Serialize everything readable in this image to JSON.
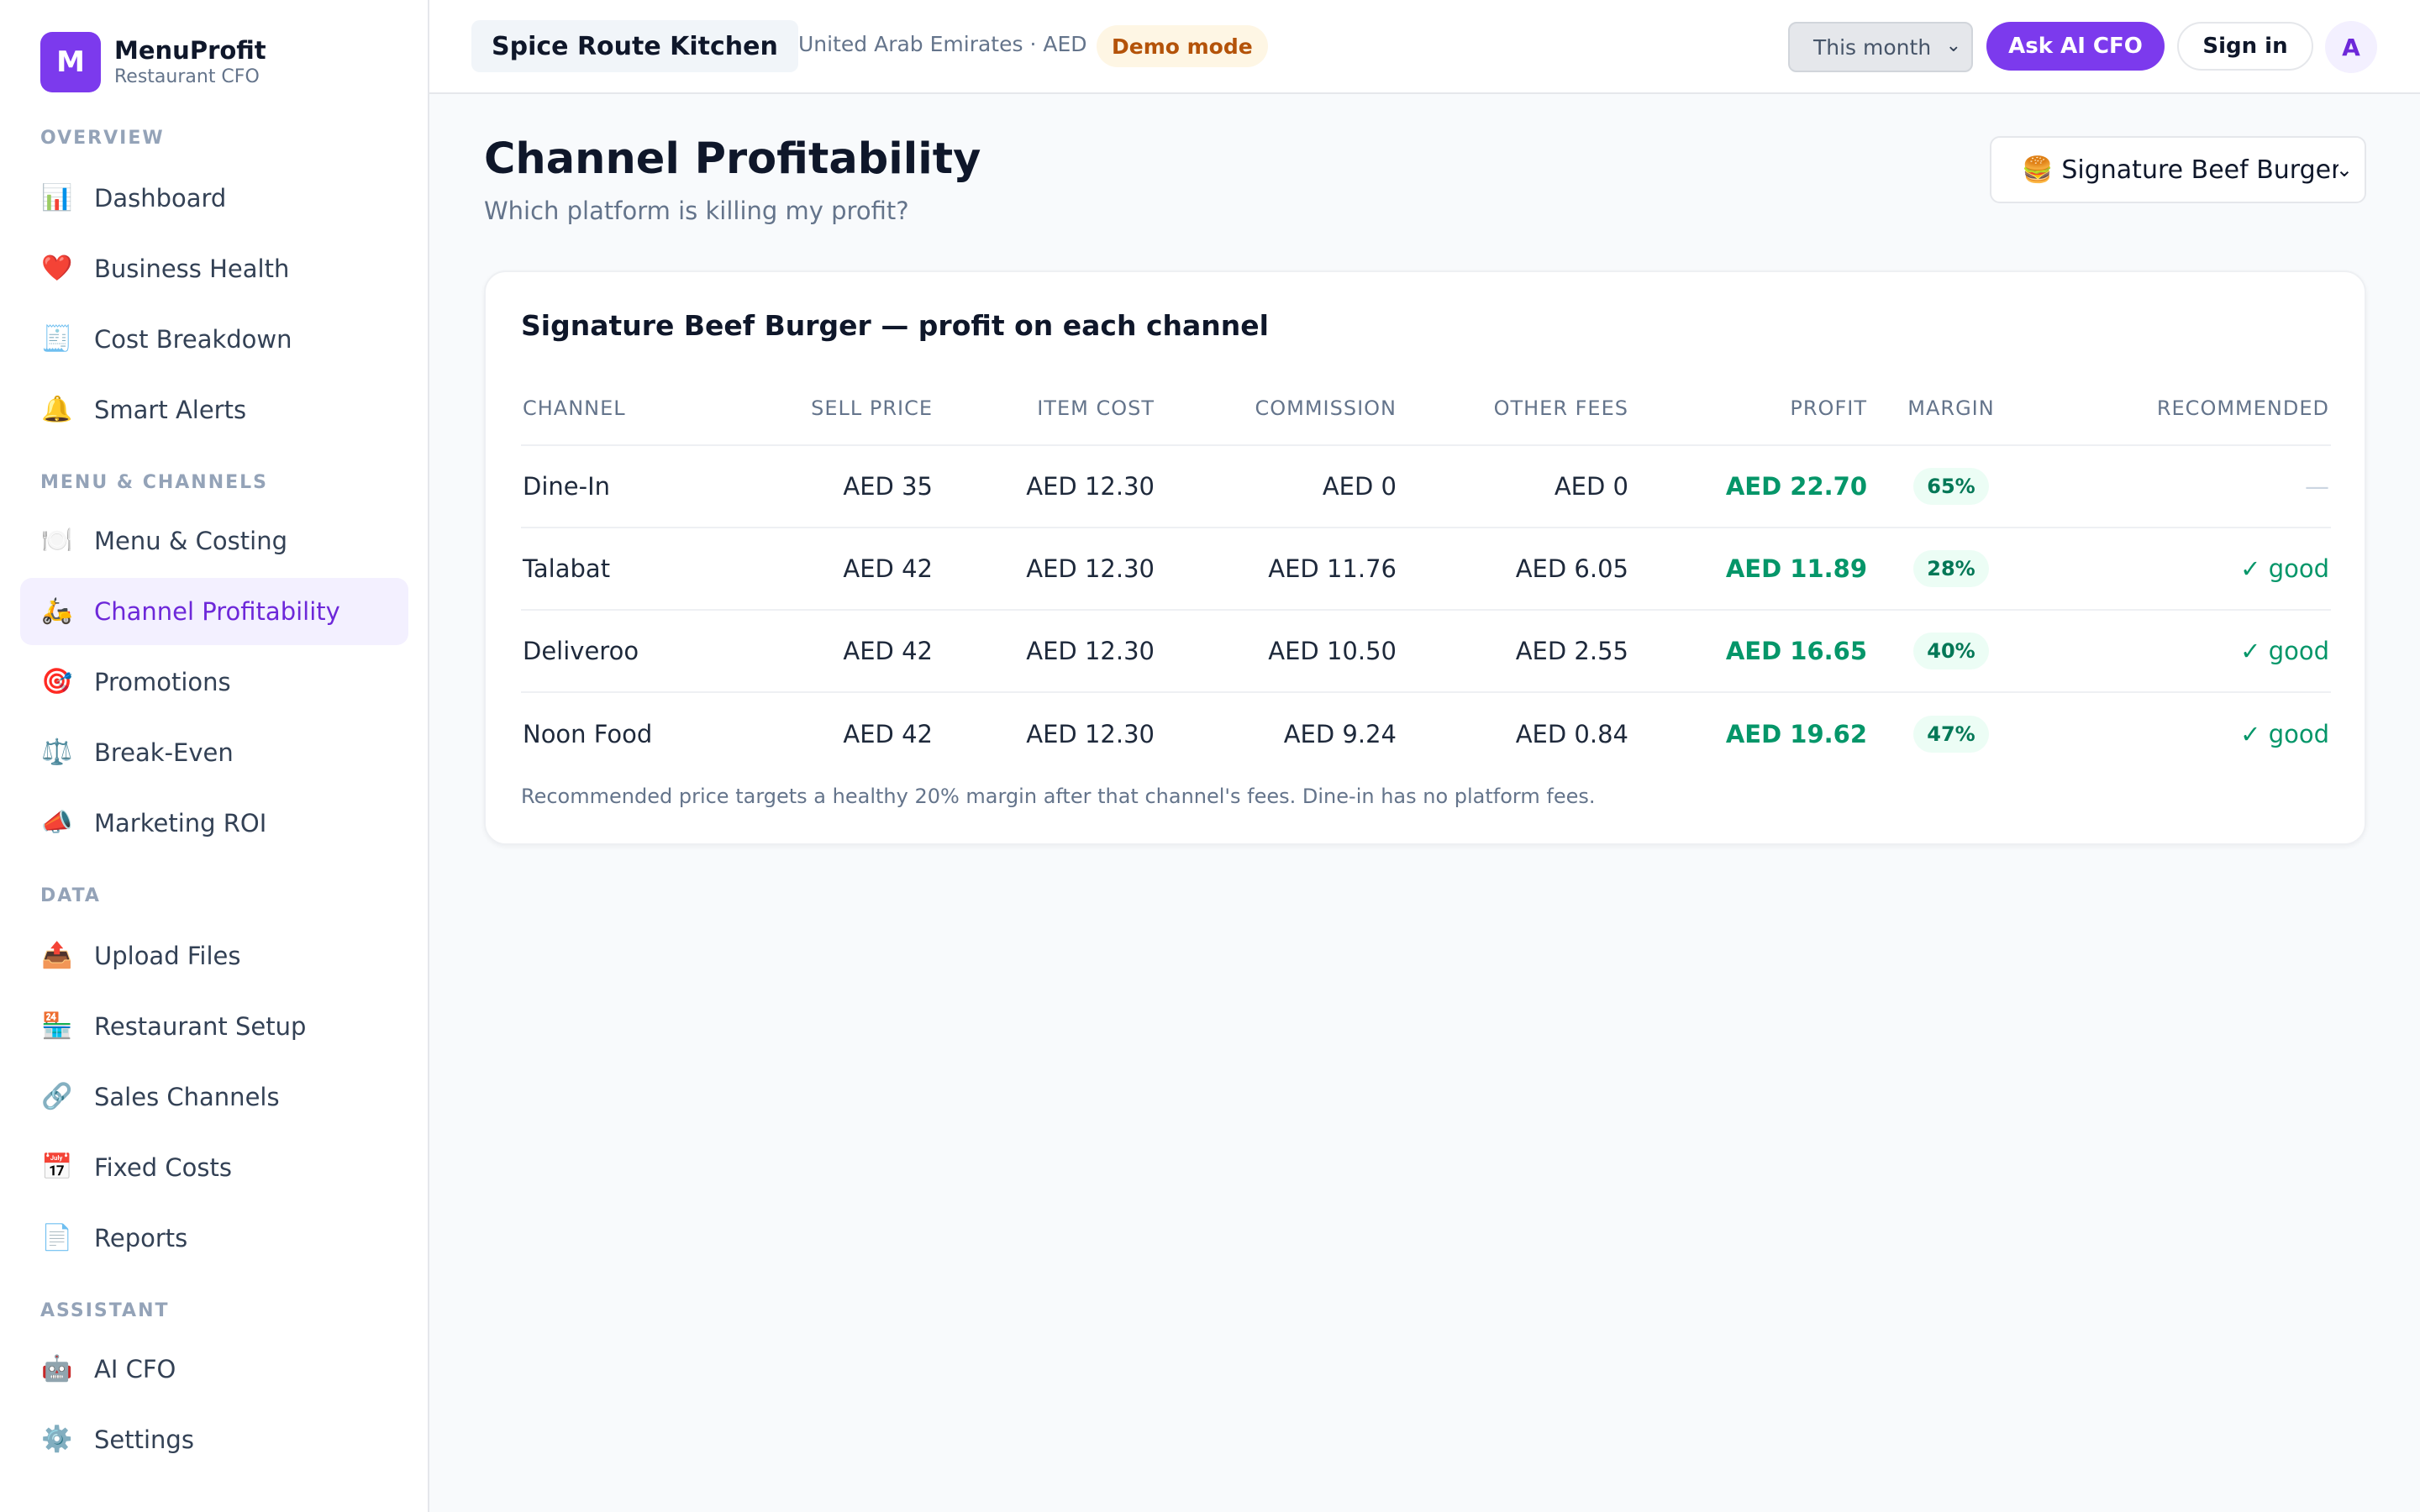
{
  "brand": {
    "logo_letter": "M",
    "name": "MenuProfit",
    "subtitle": "Restaurant CFO"
  },
  "sidebar": {
    "sections": [
      {
        "label": "OVERVIEW",
        "items": [
          {
            "icon": "bar-chart-icon",
            "glyph": "📊",
            "label": "Dashboard"
          },
          {
            "icon": "heart-icon",
            "glyph": "❤️",
            "label": "Business Health"
          },
          {
            "icon": "receipt-icon",
            "glyph": "🧾",
            "label": "Cost Breakdown"
          },
          {
            "icon": "bell-icon",
            "glyph": "🔔",
            "label": "Smart Alerts"
          }
        ]
      },
      {
        "label": "MENU & CHANNELS",
        "items": [
          {
            "icon": "plate-icon",
            "glyph": "🍽️",
            "label": "Menu & Costing"
          },
          {
            "icon": "scooter-icon",
            "glyph": "🛵",
            "label": "Channel Profitability",
            "active": true
          },
          {
            "icon": "target-icon",
            "glyph": "🎯",
            "label": "Promotions"
          },
          {
            "icon": "scales-icon",
            "glyph": "⚖️",
            "label": "Break-Even"
          },
          {
            "icon": "megaphone-icon",
            "glyph": "📣",
            "label": "Marketing ROI"
          }
        ]
      },
      {
        "label": "DATA",
        "items": [
          {
            "icon": "upload-tray-icon",
            "glyph": "📤",
            "label": "Upload Files"
          },
          {
            "icon": "store-icon",
            "glyph": "🏪",
            "label": "Restaurant Setup"
          },
          {
            "icon": "link-icon",
            "glyph": "🔗",
            "label": "Sales Channels"
          },
          {
            "icon": "calendar-icon",
            "glyph": "📅",
            "label": "Fixed Costs"
          },
          {
            "icon": "document-icon",
            "glyph": "📄",
            "label": "Reports"
          }
        ]
      },
      {
        "label": "ASSISTANT",
        "items": [
          {
            "icon": "robot-icon",
            "glyph": "🤖",
            "label": "AI CFO"
          },
          {
            "icon": "gear-icon",
            "glyph": "⚙️",
            "label": "Settings"
          }
        ]
      }
    ]
  },
  "topbar": {
    "restaurant": "Spice Route Kitchen",
    "locale": "United Arab Emirates · AED",
    "demo_badge": "Demo mode",
    "period": "This month",
    "ask_button": "Ask AI CFO",
    "signin_button": "Sign in",
    "avatar": "A"
  },
  "page": {
    "title": "Channel Profitability",
    "subtitle": "Which platform is killing my profit?",
    "item_select": {
      "emoji": "🍔",
      "value": "Signature Beef Burger"
    }
  },
  "card": {
    "title": "Signature Beef Burger — profit on each channel",
    "columns": [
      "CHANNEL",
      "SELL PRICE",
      "ITEM COST",
      "COMMISSION",
      "OTHER FEES",
      "PROFIT",
      "MARGIN",
      "RECOMMENDED"
    ],
    "rows": [
      {
        "channel": "Dine-In",
        "sell_price": "AED 35",
        "item_cost": "AED 12.30",
        "commission": "AED 0",
        "other_fees": "AED 0",
        "profit": "AED 22.70",
        "margin": "65%",
        "recommended": "—"
      },
      {
        "channel": "Talabat",
        "sell_price": "AED 42",
        "item_cost": "AED 12.30",
        "commission": "AED 11.76",
        "other_fees": "AED 6.05",
        "profit": "AED 11.89",
        "margin": "28%",
        "recommended": "✓ good"
      },
      {
        "channel": "Deliveroo",
        "sell_price": "AED 42",
        "item_cost": "AED 12.30",
        "commission": "AED 10.50",
        "other_fees": "AED 2.55",
        "profit": "AED 16.65",
        "margin": "40%",
        "recommended": "✓ good"
      },
      {
        "channel": "Noon Food",
        "sell_price": "AED 42",
        "item_cost": "AED 12.30",
        "commission": "AED 9.24",
        "other_fees": "AED 0.84",
        "profit": "AED 19.62",
        "margin": "47%",
        "recommended": "✓ good"
      }
    ],
    "footnote": "Recommended price targets a healthy 20% margin after that channel's fees. Dine-in has no platform fees."
  },
  "colors": {
    "accent": "#7c3aed",
    "profit": "#059669",
    "demo": "#b45309"
  }
}
